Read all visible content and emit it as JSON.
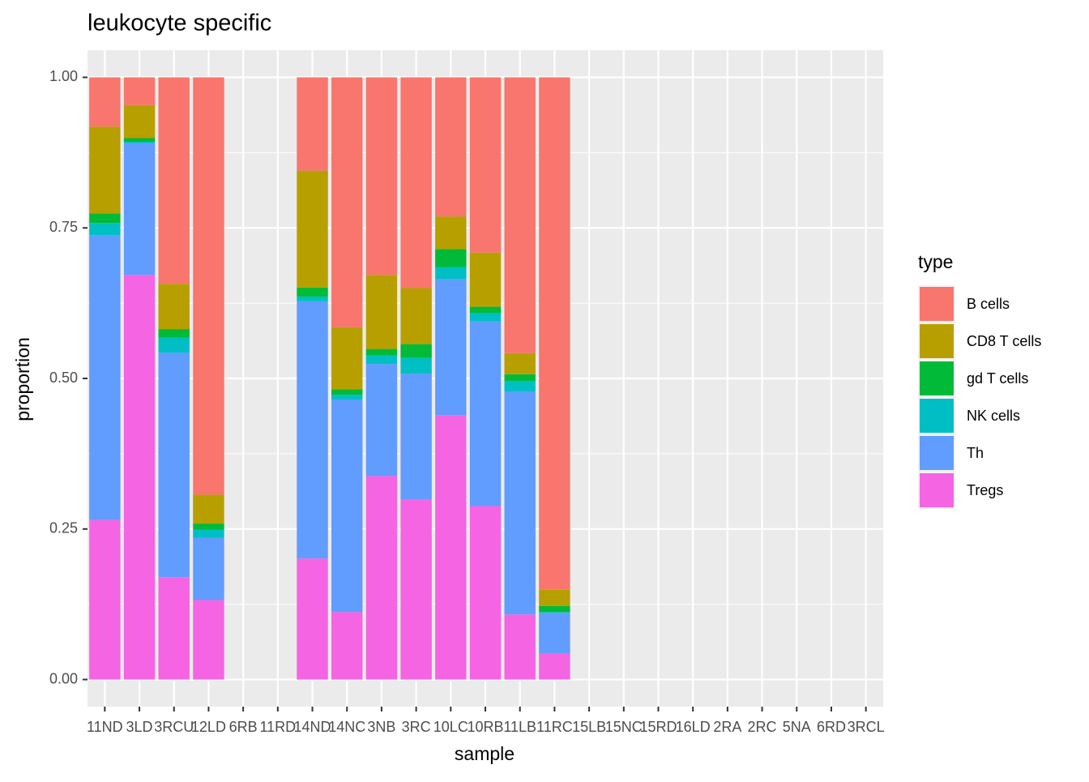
{
  "chart_data": {
    "type": "stacked_bar",
    "title": "leukocyte specific",
    "x_label": "sample",
    "y_label": "proportion",
    "legend_title": "type",
    "legend": "right",
    "categories": [
      "11ND",
      "3LD",
      "3RCU",
      "12LD",
      "6RB",
      "11RD",
      "14ND",
      "14NC",
      "3NB",
      "3RC",
      "10LC",
      "10RB",
      "11LB",
      "11RC",
      "15LB",
      "15NC",
      "15RD",
      "16LD",
      "2RA",
      "2RC",
      "5NA",
      "6RD",
      "3RCL"
    ],
    "series": [
      {
        "name": "B cells",
        "color": "#F8766D",
        "values": [
          0.082,
          0.046,
          0.343,
          0.693,
          null,
          null,
          0.155,
          0.415,
          0.328,
          0.35,
          0.231,
          0.291,
          0.458,
          0.851,
          null,
          null,
          null,
          null,
          null,
          null,
          null,
          null,
          null
        ]
      },
      {
        "name": "CD8 T cells",
        "color": "#B79F00",
        "values": [
          0.144,
          0.055,
          0.075,
          0.048,
          null,
          null,
          0.194,
          0.103,
          0.123,
          0.093,
          0.054,
          0.09,
          0.035,
          0.027,
          null,
          null,
          null,
          null,
          null,
          null,
          null,
          null,
          null
        ]
      },
      {
        "name": "gd T cells",
        "color": "#00BA38",
        "values": [
          0.016,
          0.006,
          0.014,
          0.01,
          null,
          null,
          0.015,
          0.009,
          0.011,
          0.023,
          0.03,
          0.01,
          0.011,
          0.01,
          null,
          null,
          null,
          null,
          null,
          null,
          null,
          null,
          null
        ]
      },
      {
        "name": "NK cells",
        "color": "#00BFC4",
        "values": [
          0.02,
          0.002,
          0.025,
          0.014,
          null,
          null,
          0.008,
          0.008,
          0.014,
          0.026,
          0.02,
          0.014,
          0.018,
          0.001,
          null,
          null,
          null,
          null,
          null,
          null,
          null,
          null,
          null
        ]
      },
      {
        "name": "Th",
        "color": "#619CFF",
        "values": [
          0.473,
          0.219,
          0.373,
          0.103,
          null,
          null,
          0.427,
          0.353,
          0.186,
          0.209,
          0.226,
          0.307,
          0.37,
          0.068,
          null,
          null,
          null,
          null,
          null,
          null,
          null,
          null,
          null
        ]
      },
      {
        "name": "Tregs",
        "color": "#F564E3",
        "values": [
          0.265,
          0.672,
          0.17,
          0.132,
          null,
          null,
          0.201,
          0.112,
          0.338,
          0.299,
          0.439,
          0.288,
          0.108,
          0.043,
          null,
          null,
          null,
          null,
          null,
          null,
          null,
          null,
          null
        ]
      }
    ],
    "ylim": [
      -0.045,
      1.045
    ],
    "yticks": [
      {
        "value": 0,
        "label": "0.00"
      },
      {
        "value": 0.25,
        "label": "0.25"
      },
      {
        "value": 0.5,
        "label": "0.50"
      },
      {
        "value": 0.75,
        "label": "0.75"
      },
      {
        "value": 1,
        "label": "1.00"
      }
    ],
    "grid": true
  }
}
